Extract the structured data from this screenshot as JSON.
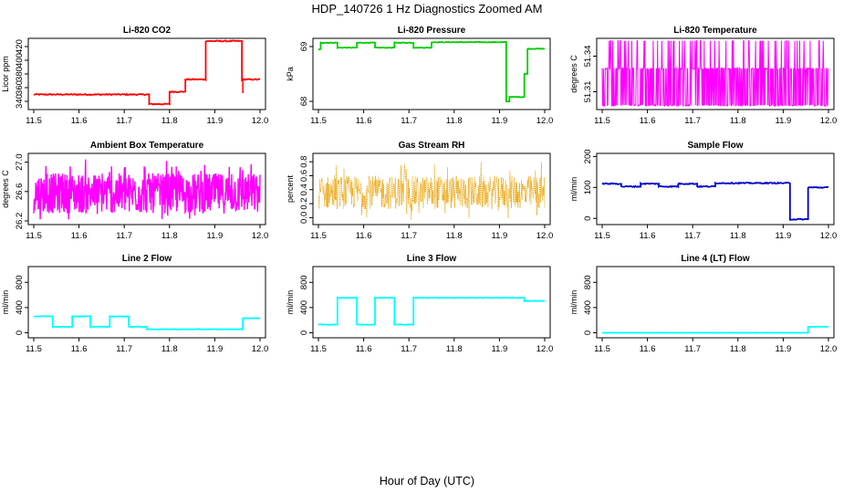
{
  "figure": {
    "title": "HDP_140726  1 Hz Diagnostics Zoomed AM",
    "xlabel": "Hour of Day (UTC)"
  },
  "chart_data": [
    {
      "type": "line",
      "title": "Li-820 CO2",
      "ylabel": "Licor ppm",
      "color": "#ff0000",
      "xlim": [
        11.5,
        12.0
      ],
      "xticks": [
        "11.5",
        "11.6",
        "11.7",
        "11.8",
        "11.9",
        "12.0"
      ],
      "ylim": [
        328,
        432
      ],
      "yticks": [
        340,
        360,
        380,
        400,
        420
      ],
      "noise": 0.8,
      "segments": [
        [
          11.5,
          11.755,
          350
        ],
        [
          11.755,
          11.8,
          336
        ],
        [
          11.8,
          11.835,
          354
        ],
        [
          11.835,
          11.88,
          372
        ],
        [
          11.88,
          11.96,
          428
        ],
        [
          11.96,
          12.0,
          372
        ]
      ],
      "spikes": [
        [
          11.962,
          352
        ]
      ]
    },
    {
      "type": "line",
      "title": "Li-820 Pressure",
      "ylabel": "kPa",
      "color": "#00cc00",
      "xlim": [
        11.5,
        12.0
      ],
      "xticks": [
        "11.5",
        "11.6",
        "11.7",
        "11.8",
        "11.9",
        "12.0"
      ],
      "ylim": [
        67.85,
        69.15
      ],
      "yticks": [
        68.0,
        69.0
      ],
      "noise": 0.006,
      "segments": [
        [
          11.5,
          11.505,
          68.95
        ],
        [
          11.505,
          11.542,
          69.07
        ],
        [
          11.542,
          11.585,
          68.98
        ],
        [
          11.585,
          11.625,
          69.07
        ],
        [
          11.625,
          11.668,
          68.98
        ],
        [
          11.668,
          11.71,
          69.07
        ],
        [
          11.71,
          11.75,
          68.98
        ],
        [
          11.75,
          11.915,
          69.08
        ],
        [
          11.915,
          11.922,
          68.0
        ],
        [
          11.922,
          11.955,
          68.08
        ],
        [
          11.955,
          11.962,
          68.5
        ],
        [
          11.962,
          12.0,
          68.96
        ]
      ],
      "spikes": []
    },
    {
      "type": "line",
      "title": "Li-820 Temperature",
      "ylabel": "degrees C",
      "color": "#ff00ff",
      "xlim": [
        11.5,
        12.0
      ],
      "xticks": [
        "11.5",
        "11.6",
        "11.7",
        "11.8",
        "11.9",
        "12.0"
      ],
      "ylim": [
        51.295,
        51.355
      ],
      "yticks": [
        51.31,
        51.34
      ],
      "yticklabels": [
        "51.31",
        "51.34"
      ],
      "pattern": "band",
      "band": [
        51.298,
        51.329,
        51.353
      ]
    },
    {
      "type": "line",
      "title": "Ambient Box Temperature",
      "ylabel": "degrees C",
      "color": "#ff00ff",
      "xlim": [
        11.5,
        12.0
      ],
      "xticks": [
        "11.5",
        "11.6",
        "11.7",
        "11.8",
        "11.9",
        "12.0"
      ],
      "ylim": [
        26.15,
        27.12
      ],
      "yticks": [
        26.2,
        26.6,
        27.0
      ],
      "yticklabels": [
        "26.2",
        "26.6",
        "27.0"
      ],
      "pattern": "noise",
      "noiseRange": [
        26.3,
        26.85,
        26.22,
        27.05
      ]
    },
    {
      "type": "scatter",
      "title": "Gas Stream RH",
      "ylabel": "percent",
      "color": "#e8a000",
      "xlim": [
        11.5,
        12.0
      ],
      "xticks": [
        "11.5",
        "11.6",
        "11.7",
        "11.8",
        "11.9",
        "12.0"
      ],
      "ylim": [
        -0.1,
        0.92
      ],
      "yticks": [
        0.0,
        0.2,
        0.4,
        0.6,
        0.8
      ],
      "yticklabels": [
        "0.0",
        "0.2",
        "0.4",
        "0.6",
        "0.8"
      ],
      "pattern": "noise",
      "noiseRange": [
        0.12,
        0.6,
        -0.05,
        0.82
      ]
    },
    {
      "type": "line",
      "title": "Sample Flow",
      "ylabel": "ml/min",
      "color": "#0000cc",
      "xlim": [
        11.5,
        12.0
      ],
      "xticks": [
        "11.5",
        "11.6",
        "11.7",
        "11.8",
        "11.9",
        "12.0"
      ],
      "ylim": [
        -20,
        210
      ],
      "yticks": [
        0,
        100,
        200
      ],
      "noise": 1.8,
      "segments": [
        [
          11.5,
          11.542,
          112
        ],
        [
          11.542,
          11.585,
          103
        ],
        [
          11.585,
          11.625,
          112
        ],
        [
          11.625,
          11.668,
          103
        ],
        [
          11.668,
          11.71,
          112
        ],
        [
          11.71,
          11.75,
          103
        ],
        [
          11.75,
          11.915,
          114
        ],
        [
          11.915,
          11.955,
          -3
        ],
        [
          11.955,
          12.0,
          100
        ]
      ],
      "spikes": []
    },
    {
      "type": "line",
      "title": "Line 2 Flow",
      "ylabel": "ml/min",
      "color": "#00ffff",
      "xlim": [
        11.5,
        12.0
      ],
      "xticks": [
        "11.5",
        "11.6",
        "11.7",
        "11.8",
        "11.9",
        "12.0"
      ],
      "ylim": [
        -80,
        1050
      ],
      "yticks": [
        0,
        400,
        800
      ],
      "noise": 4,
      "segments": [
        [
          11.5,
          11.542,
          260
        ],
        [
          11.542,
          11.585,
          95
        ],
        [
          11.585,
          11.625,
          260
        ],
        [
          11.625,
          11.668,
          95
        ],
        [
          11.668,
          11.71,
          260
        ],
        [
          11.71,
          11.75,
          95
        ],
        [
          11.75,
          11.962,
          55
        ],
        [
          11.962,
          12.0,
          230
        ]
      ],
      "spikes": []
    },
    {
      "type": "line",
      "title": "Line 3 Flow",
      "ylabel": "ml/min",
      "color": "#00ffff",
      "xlim": [
        11.5,
        12.0
      ],
      "xticks": [
        "11.5",
        "11.6",
        "11.7",
        "11.8",
        "11.9",
        "12.0"
      ],
      "ylim": [
        -80,
        1050
      ],
      "yticks": [
        0,
        400,
        800
      ],
      "noise": 5,
      "segments": [
        [
          11.5,
          11.542,
          130
        ],
        [
          11.542,
          11.585,
          555
        ],
        [
          11.585,
          11.625,
          130
        ],
        [
          11.625,
          11.668,
          555
        ],
        [
          11.668,
          11.71,
          130
        ],
        [
          11.71,
          11.955,
          555
        ],
        [
          11.955,
          12.0,
          505
        ]
      ],
      "spikes": []
    },
    {
      "type": "line",
      "title": "Line 4 (LT) Flow",
      "ylabel": "ml/min",
      "color": "#00ffff",
      "xlim": [
        11.5,
        12.0
      ],
      "xticks": [
        "11.5",
        "11.6",
        "11.7",
        "11.8",
        "11.9",
        "12.0"
      ],
      "ylim": [
        -80,
        1050
      ],
      "yticks": [
        0,
        400,
        800
      ],
      "noise": 1,
      "segments": [
        [
          11.5,
          11.955,
          0
        ],
        [
          11.955,
          12.0,
          95
        ]
      ],
      "spikes": []
    }
  ]
}
